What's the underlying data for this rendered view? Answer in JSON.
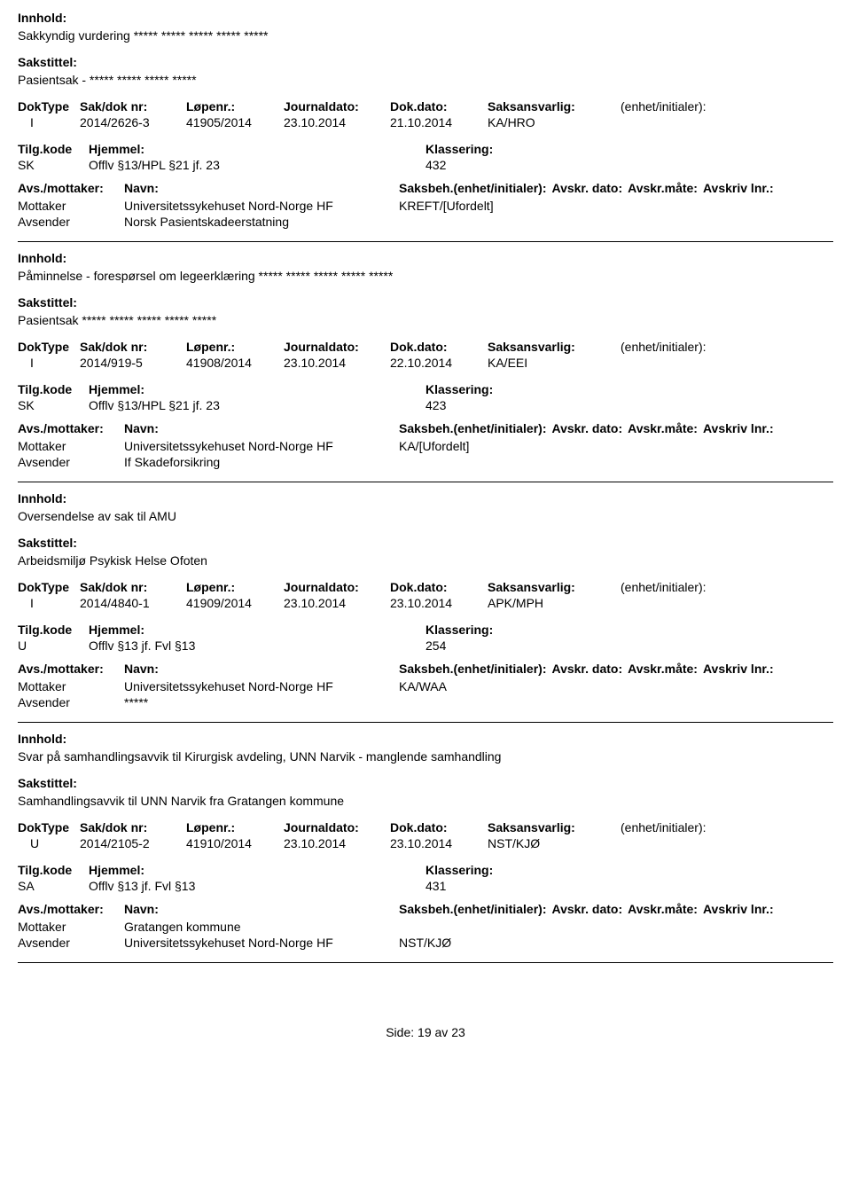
{
  "labels": {
    "innhold": "Innhold:",
    "sakstittel": "Sakstittel:",
    "doktype": "DokType",
    "sakdok": "Sak/dok nr:",
    "lopenr": "Løpenr.:",
    "jdato": "Journaldato:",
    "ddato": "Dok.dato:",
    "saksansv": "Saksansvarlig:",
    "enhet": "(enhet/initialer):",
    "tilgkode": "Tilg.kode",
    "hjemmel": "Hjemmel:",
    "klassering": "Klassering:",
    "avsmottaker": "Avs./mottaker:",
    "navn": "Navn:",
    "saksbeh": "Saksbeh.(enhet/initialer):",
    "avskrdato": "Avskr. dato:",
    "avskrmote": "Avskr.måte:",
    "avskrivlnr": "Avskriv lnr.:",
    "mottaker": "Mottaker",
    "avsender": "Avsender",
    "side": "Side:",
    "av": "av"
  },
  "records": [
    {
      "innhold": "Sakkyndig vurdering ***** ***** ***** ***** *****",
      "sakstittel": "Pasientsak - ***** ***** ***** *****",
      "doktype": "I",
      "sakdok": "2014/2626-3",
      "lopenr": "41905/2014",
      "jdato": "23.10.2014",
      "ddato": "21.10.2014",
      "saksansv": "KA/HRO",
      "tilgkode": "SK",
      "hjemmel": "Offlv §13/HPL §21 jf. 23",
      "klassering": "432",
      "show_extra_headers": false,
      "parties": [
        {
          "role": "Mottaker",
          "name": "Universitetssykehuset Nord-Norge HF",
          "saksbeh": "KREFT/[Ufordelt]"
        },
        {
          "role": "Avsender",
          "name": "Norsk Pasientskadeerstatning",
          "saksbeh": ""
        }
      ]
    },
    {
      "innhold": "Påminnelse - forespørsel om legeerklæring ***** ***** ***** ***** *****",
      "sakstittel": "Pasientsak ***** ***** ***** ***** *****",
      "doktype": "I",
      "sakdok": "2014/919-5",
      "lopenr": "41908/2014",
      "jdato": "23.10.2014",
      "ddato": "22.10.2014",
      "saksansv": "KA/EEI",
      "tilgkode": "SK",
      "hjemmel": "Offlv §13/HPL §21 jf. 23",
      "klassering": "423",
      "show_extra_headers": false,
      "parties": [
        {
          "role": "Mottaker",
          "name": "Universitetssykehuset Nord-Norge HF",
          "saksbeh": "KA/[Ufordelt]"
        },
        {
          "role": "Avsender",
          "name": "If Skadeforsikring",
          "saksbeh": ""
        }
      ]
    },
    {
      "innhold": "Oversendelse av sak til AMU",
      "sakstittel": "Arbeidsmiljø Psykisk Helse Ofoten",
      "doktype": "I",
      "sakdok": "2014/4840-1",
      "lopenr": "41909/2014",
      "jdato": "23.10.2014",
      "ddato": "23.10.2014",
      "saksansv": "APK/MPH",
      "tilgkode": "U",
      "hjemmel": "Offlv §13 jf. Fvl §13",
      "klassering": "254",
      "show_extra_headers": true,
      "parties": [
        {
          "role": "Mottaker",
          "name": "Universitetssykehuset Nord-Norge HF",
          "saksbeh": "KA/WAA"
        },
        {
          "role": "Avsender",
          "name": "*****",
          "saksbeh": ""
        }
      ]
    },
    {
      "innhold": "Svar på samhandlingsavvik til Kirurgisk avdeling, UNN Narvik - manglende samhandling",
      "sakstittel": "Samhandlingsavvik til UNN Narvik fra Gratangen kommune",
      "doktype": "U",
      "sakdok": "2014/2105-2",
      "lopenr": "41910/2014",
      "jdato": "23.10.2014",
      "ddato": "23.10.2014",
      "saksansv": "NST/KJØ",
      "tilgkode": "SA",
      "hjemmel": "Offlv §13 jf. Fvl §13",
      "klassering": "431",
      "show_extra_headers": true,
      "parties": [
        {
          "role": "Mottaker",
          "name": "Gratangen kommune",
          "saksbeh": ""
        },
        {
          "role": "Avsender",
          "name": "Universitetssykehuset Nord-Norge HF",
          "saksbeh": "NST/KJØ"
        }
      ]
    }
  ],
  "footer": {
    "page": "19",
    "total": "23"
  }
}
